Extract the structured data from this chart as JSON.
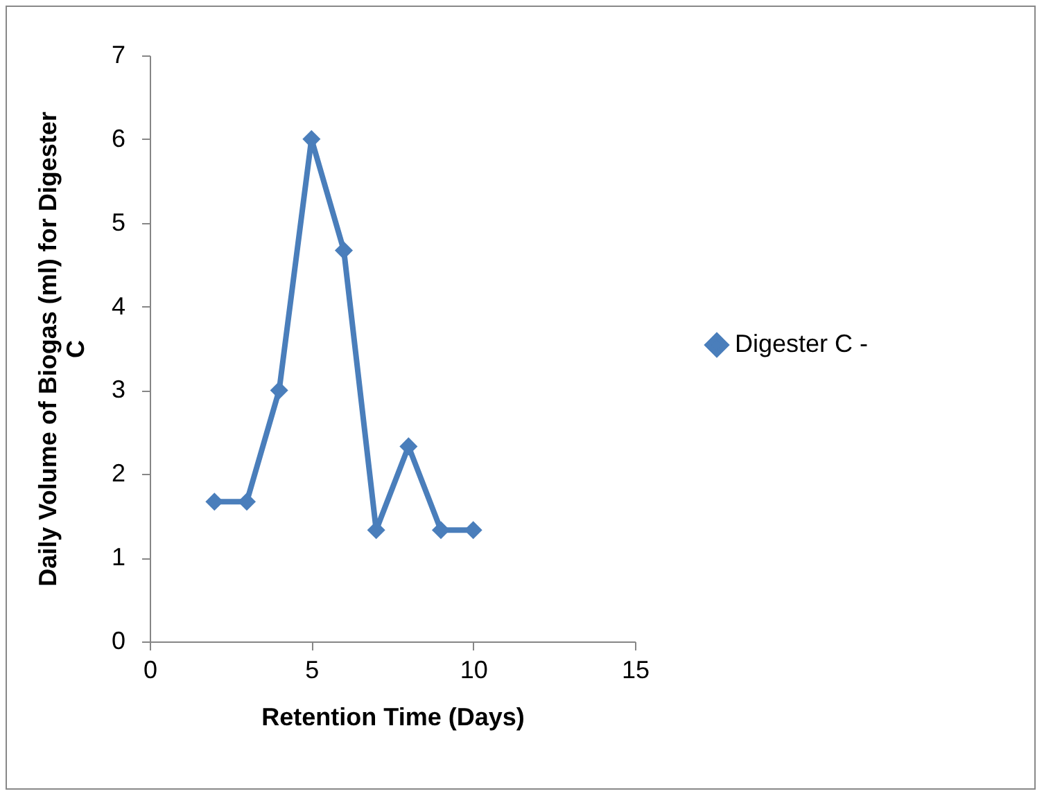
{
  "chart_data": {
    "type": "line",
    "xlabel": "Retention Time (Days)",
    "ylabel": "Daily Volume of Biogas (ml) for Digester C",
    "x": [
      2,
      3,
      4,
      5,
      6,
      7,
      8,
      9,
      10
    ],
    "series": [
      {
        "name": "Digester C -",
        "color": "#4a7ebb",
        "values": [
          1.67,
          1.67,
          3,
          6,
          4.67,
          1.33,
          2.33,
          1.33,
          1.33
        ]
      }
    ],
    "xlim": [
      0,
      15
    ],
    "xticks": [
      0,
      5,
      10,
      15
    ],
    "ylim": [
      0,
      7
    ],
    "yticks": [
      0,
      1,
      2,
      3,
      4,
      5,
      6,
      7
    ],
    "marker": "diamond",
    "legend": "right",
    "grid": false
  }
}
